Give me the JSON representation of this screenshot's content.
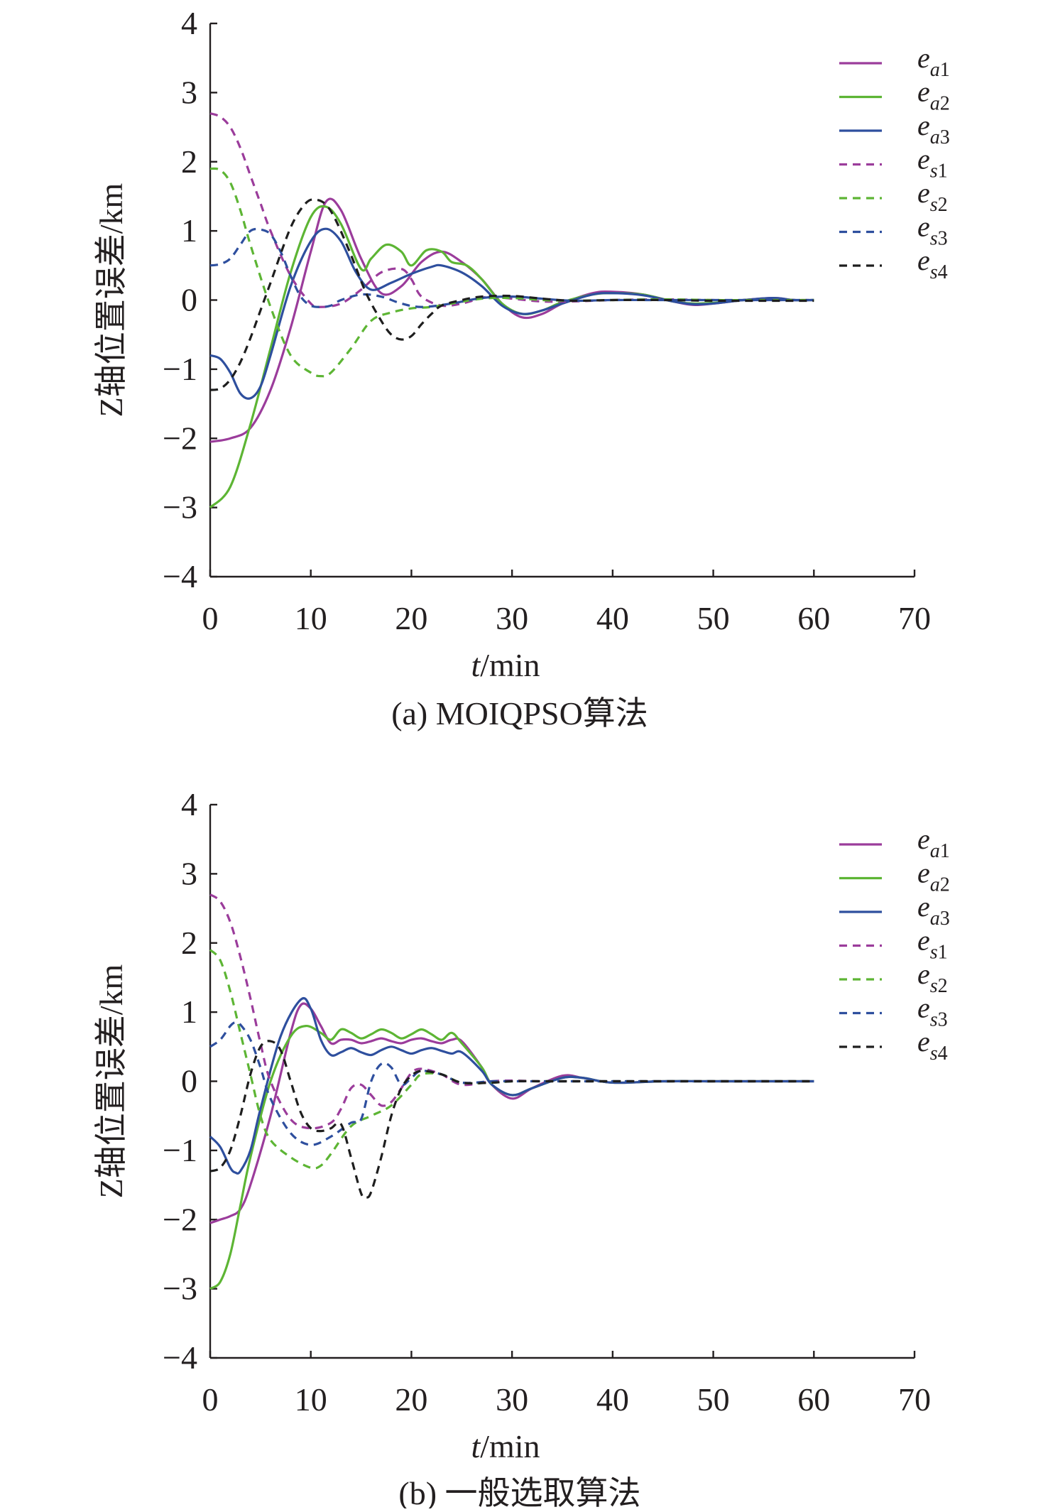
{
  "chart_data": [
    {
      "type": "line",
      "caption": "(a) MOIQPSO算法",
      "xlabel_italic": "t",
      "xlabel_unit": "/min",
      "ylabel": "Z轴位置误差/km",
      "xlim": [
        0,
        70
      ],
      "ylim": [
        -4,
        4
      ],
      "xticks": [
        "0",
        "10",
        "20",
        "30",
        "40",
        "50",
        "60",
        "70"
      ],
      "yticks": [
        "4",
        "3",
        "2",
        "1",
        "0",
        "−1",
        "−2",
        "−3",
        "−4"
      ],
      "grid": false,
      "legend_position": "top-right",
      "series": [
        {
          "name": "ea1",
          "label_main": "e",
          "label_sub": "a1",
          "color": "#9b3c9b",
          "style": "solid",
          "x": [
            0,
            2,
            4,
            6,
            8,
            10,
            11.5,
            13,
            15,
            17,
            19,
            21,
            23,
            25,
            27,
            29,
            31,
            33,
            35,
            38,
            40,
            43,
            46,
            48,
            50,
            53,
            56,
            58,
            60
          ],
          "y": [
            -2.05,
            -2.0,
            -1.85,
            -1.3,
            -0.4,
            0.7,
            1.42,
            1.3,
            0.6,
            0.1,
            0.2,
            0.55,
            0.7,
            0.55,
            0.3,
            -0.05,
            -0.25,
            -0.2,
            -0.05,
            0.1,
            0.12,
            0.08,
            -0.02,
            -0.07,
            -0.05,
            0.0,
            0.03,
            0.0,
            0.0
          ]
        },
        {
          "name": "ea2",
          "label_main": "e",
          "label_sub": "a2",
          "color": "#5db534",
          "style": "solid",
          "x": [
            0,
            2,
            4,
            6,
            8,
            10,
            11.5,
            13,
            15,
            16,
            17.5,
            19,
            20,
            21.5,
            23,
            24,
            25.5,
            27,
            29,
            31,
            33,
            35,
            38,
            40,
            43,
            46,
            48,
            50,
            53,
            56,
            58,
            60
          ],
          "y": [
            -3.0,
            -2.7,
            -1.8,
            -0.7,
            0.4,
            1.2,
            1.35,
            1.1,
            0.45,
            0.6,
            0.8,
            0.7,
            0.5,
            0.72,
            0.7,
            0.55,
            0.5,
            0.3,
            -0.05,
            -0.2,
            -0.15,
            -0.03,
            0.08,
            0.1,
            0.08,
            -0.02,
            -0.05,
            -0.04,
            0.0,
            0.02,
            0.0,
            0.0
          ]
        },
        {
          "name": "ea3",
          "label_main": "e",
          "label_sub": "a3",
          "color": "#2e4f9e",
          "style": "solid",
          "x": [
            0,
            1,
            2,
            3,
            4,
            5,
            6,
            8,
            10,
            11.5,
            13,
            14.5,
            16,
            18,
            20,
            22,
            23,
            25,
            27,
            29,
            31,
            33,
            35,
            38,
            40,
            43,
            46,
            48,
            50,
            53,
            56,
            58,
            60
          ],
          "y": [
            -0.8,
            -0.85,
            -1.05,
            -1.35,
            -1.42,
            -1.25,
            -0.8,
            0.2,
            0.85,
            1.03,
            0.85,
            0.4,
            0.15,
            0.25,
            0.38,
            0.48,
            0.5,
            0.4,
            0.2,
            -0.08,
            -0.2,
            -0.15,
            -0.05,
            0.08,
            0.1,
            0.07,
            -0.02,
            -0.06,
            -0.05,
            0.0,
            0.03,
            0.0,
            0.0
          ]
        },
        {
          "name": "es1",
          "label_main": "e",
          "label_sub": "s1",
          "color": "#9b3c9b",
          "style": "dashed",
          "x": [
            0,
            1,
            2,
            3,
            4,
            5,
            6,
            8,
            10,
            11,
            13,
            15,
            17,
            19,
            20,
            21,
            23,
            25,
            27,
            28,
            30,
            33,
            36,
            40,
            45,
            50,
            55,
            60
          ],
          "y": [
            2.7,
            2.65,
            2.5,
            2.2,
            1.8,
            1.4,
            1.0,
            0.35,
            -0.05,
            -0.1,
            -0.05,
            0.15,
            0.4,
            0.45,
            0.3,
            0.05,
            -0.08,
            -0.05,
            0.03,
            0.05,
            0.02,
            -0.02,
            -0.02,
            0.0,
            0.01,
            0.0,
            0.0,
            0.0
          ]
        },
        {
          "name": "es2",
          "label_main": "e",
          "label_sub": "s2",
          "color": "#5db534",
          "style": "dashed",
          "x": [
            0,
            1,
            2,
            3,
            4,
            6,
            8,
            10,
            11,
            12,
            14,
            16,
            18,
            20,
            22,
            24,
            27,
            30,
            33,
            36,
            40,
            45,
            50,
            55,
            60
          ],
          "y": [
            1.9,
            1.88,
            1.7,
            1.3,
            0.8,
            -0.1,
            -0.8,
            -1.05,
            -1.1,
            -1.05,
            -0.7,
            -0.3,
            -0.18,
            -0.12,
            -0.1,
            -0.05,
            0.02,
            0.03,
            0.0,
            -0.01,
            0.0,
            0.01,
            0.0,
            0.0,
            0.0
          ]
        },
        {
          "name": "es3",
          "label_main": "e",
          "label_sub": "s3",
          "color": "#2e4f9e",
          "style": "dashed",
          "x": [
            0,
            1,
            2,
            3,
            4,
            5,
            6,
            7,
            8,
            9,
            10,
            11,
            12,
            13,
            15,
            17,
            19,
            21,
            24,
            27,
            30,
            33,
            36,
            40,
            45,
            50,
            55,
            60
          ],
          "y": [
            0.5,
            0.52,
            0.6,
            0.8,
            1.0,
            1.02,
            0.95,
            0.7,
            0.35,
            0.05,
            -0.08,
            -0.1,
            -0.08,
            0.0,
            0.08,
            0.05,
            -0.05,
            -0.1,
            -0.05,
            0.03,
            0.05,
            0.02,
            -0.01,
            0.0,
            0.0,
            0.0,
            0.0,
            0.0
          ]
        },
        {
          "name": "es4",
          "label_main": "e",
          "label_sub": "s4",
          "color": "#1e1e1e",
          "style": "dashed",
          "x": [
            0,
            1,
            2,
            3,
            4,
            5,
            6,
            8,
            9.5,
            10.5,
            11.5,
            12.5,
            14,
            15.5,
            17,
            18,
            19,
            20,
            21,
            22,
            23,
            25,
            27,
            30,
            33,
            36,
            40,
            45,
            50,
            55,
            60
          ],
          "y": [
            -1.3,
            -1.28,
            -1.15,
            -0.9,
            -0.55,
            -0.15,
            0.25,
            1.05,
            1.4,
            1.45,
            1.38,
            1.15,
            0.65,
            0.1,
            -0.3,
            -0.5,
            -0.57,
            -0.52,
            -0.35,
            -0.2,
            -0.08,
            0.0,
            0.05,
            0.06,
            0.02,
            -0.01,
            0.0,
            0.0,
            -0.01,
            -0.01,
            -0.01
          ]
        }
      ]
    },
    {
      "type": "line",
      "caption": "(b) 一般选取算法",
      "xlabel_italic": "t",
      "xlabel_unit": "/min",
      "ylabel": "Z轴位置误差/km",
      "xlim": [
        0,
        70
      ],
      "ylim": [
        -4,
        4
      ],
      "xticks": [
        "0",
        "10",
        "20",
        "30",
        "40",
        "50",
        "60",
        "70"
      ],
      "yticks": [
        "4",
        "3",
        "2",
        "1",
        "0",
        "−1",
        "−2",
        "−3",
        "−4"
      ],
      "grid": false,
      "legend_position": "top-right",
      "series": [
        {
          "name": "ea1",
          "label_main": "e",
          "label_sub": "a1",
          "color": "#9b3c9b",
          "style": "solid",
          "x": [
            0,
            1,
            2,
            3,
            4,
            6,
            8,
            9,
            10,
            11,
            12,
            13,
            14,
            15,
            16,
            17,
            18,
            19,
            20,
            21,
            22,
            23,
            24,
            25,
            27,
            28,
            30,
            32,
            35,
            37,
            40,
            45,
            50,
            55,
            60
          ],
          "y": [
            -2.05,
            -2.0,
            -1.95,
            -1.85,
            -1.5,
            -0.5,
            0.7,
            1.1,
            1.05,
            0.8,
            0.55,
            0.6,
            0.6,
            0.55,
            0.58,
            0.62,
            0.58,
            0.55,
            0.6,
            0.62,
            0.58,
            0.55,
            0.6,
            0.58,
            0.2,
            -0.05,
            -0.25,
            -0.1,
            0.08,
            0.05,
            -0.02,
            0.0,
            0.0,
            0.0,
            0.0
          ]
        },
        {
          "name": "ea2",
          "label_main": "e",
          "label_sub": "a2",
          "color": "#5db534",
          "style": "solid",
          "x": [
            0,
            1,
            2,
            3,
            4,
            6,
            8,
            9.5,
            11,
            12,
            13,
            14,
            15,
            16,
            17,
            18,
            19,
            20,
            21,
            22,
            23,
            24,
            25,
            27,
            28,
            30,
            32,
            35,
            37,
            40,
            45,
            50,
            55,
            60
          ],
          "y": [
            -3.0,
            -2.9,
            -2.5,
            -1.8,
            -1.1,
            0.0,
            0.65,
            0.8,
            0.7,
            0.6,
            0.75,
            0.7,
            0.62,
            0.68,
            0.75,
            0.7,
            0.62,
            0.68,
            0.75,
            0.68,
            0.6,
            0.7,
            0.55,
            0.2,
            -0.05,
            -0.2,
            -0.1,
            0.05,
            0.05,
            -0.02,
            0.0,
            0.0,
            0.0,
            0.0
          ]
        },
        {
          "name": "ea3",
          "label_main": "e",
          "label_sub": "a3",
          "color": "#2e4f9e",
          "style": "solid",
          "x": [
            0,
            1,
            2,
            2.5,
            3,
            4,
            5,
            7,
            9,
            10,
            11,
            12,
            13,
            14,
            15,
            16,
            17,
            18,
            19,
            20,
            21,
            22,
            23,
            24,
            25,
            27,
            28,
            30,
            32,
            35,
            37,
            40,
            45,
            50,
            55,
            60
          ],
          "y": [
            -0.8,
            -0.95,
            -1.25,
            -1.32,
            -1.3,
            -1.0,
            -0.4,
            0.65,
            1.18,
            1.05,
            0.6,
            0.38,
            0.42,
            0.48,
            0.42,
            0.38,
            0.45,
            0.5,
            0.45,
            0.4,
            0.45,
            0.48,
            0.44,
            0.4,
            0.42,
            0.15,
            -0.05,
            -0.2,
            -0.1,
            0.05,
            0.05,
            -0.02,
            0.0,
            0.0,
            0.0,
            0.0
          ]
        },
        {
          "name": "es1",
          "label_main": "e",
          "label_sub": "s1",
          "color": "#9b3c9b",
          "style": "dashed",
          "x": [
            0,
            1,
            2,
            3,
            4,
            5,
            6,
            8,
            10,
            12,
            13,
            14,
            15,
            16,
            17,
            18,
            19,
            20,
            21,
            23,
            25,
            28,
            30,
            33,
            36,
            40,
            45,
            50,
            55,
            60
          ],
          "y": [
            2.7,
            2.6,
            2.3,
            1.8,
            1.2,
            0.55,
            0.0,
            -0.55,
            -0.68,
            -0.6,
            -0.4,
            -0.1,
            -0.05,
            -0.2,
            -0.35,
            -0.3,
            -0.1,
            0.12,
            0.18,
            0.1,
            -0.05,
            0.0,
            0.01,
            0.0,
            0.0,
            0.0,
            0.0,
            0.0,
            0.0,
            0.0
          ]
        },
        {
          "name": "es2",
          "label_main": "e",
          "label_sub": "s2",
          "color": "#5db534",
          "style": "dashed",
          "x": [
            0,
            1,
            2,
            3,
            4,
            5,
            6,
            8,
            10,
            11,
            12,
            14,
            16,
            18,
            20,
            21,
            23,
            25,
            28,
            30,
            33,
            36,
            40,
            45,
            50,
            55,
            60
          ],
          "y": [
            1.9,
            1.75,
            1.3,
            0.7,
            0.1,
            -0.5,
            -0.85,
            -1.1,
            -1.25,
            -1.22,
            -1.05,
            -0.65,
            -0.5,
            -0.35,
            -0.05,
            0.1,
            0.1,
            -0.02,
            -0.02,
            0.0,
            0.0,
            0.0,
            0.0,
            0.0,
            0.0,
            0.0,
            0.0
          ]
        },
        {
          "name": "es3",
          "label_main": "e",
          "label_sub": "s3",
          "color": "#2e4f9e",
          "style": "dashed",
          "x": [
            0,
            1,
            2,
            2.5,
            3,
            4,
            5,
            6,
            8,
            10,
            12,
            14,
            15,
            16,
            17,
            18,
            19,
            20,
            21,
            23,
            25,
            28,
            30,
            33,
            36,
            40,
            45,
            50,
            55,
            60
          ],
          "y": [
            0.5,
            0.6,
            0.8,
            0.85,
            0.82,
            0.6,
            0.2,
            -0.25,
            -0.75,
            -0.92,
            -0.8,
            -0.6,
            -0.55,
            0.0,
            0.25,
            0.2,
            -0.05,
            0.05,
            0.15,
            0.1,
            -0.02,
            0.0,
            0.0,
            0.0,
            0.0,
            0.0,
            0.0,
            0.0,
            0.0,
            0.0
          ]
        },
        {
          "name": "es4",
          "label_main": "e",
          "label_sub": "s4",
          "color": "#1e1e1e",
          "style": "dashed",
          "x": [
            0,
            1,
            2,
            3,
            4,
            5,
            6,
            7,
            8,
            9,
            10,
            11,
            12,
            13,
            14,
            15,
            15.5,
            16,
            17,
            18,
            19,
            20,
            21,
            23,
            25,
            28,
            30,
            33,
            36,
            40,
            45,
            50,
            55,
            60
          ],
          "y": [
            -1.3,
            -1.25,
            -1.0,
            -0.5,
            0.1,
            0.5,
            0.58,
            0.45,
            0.0,
            -0.45,
            -0.68,
            -0.72,
            -0.68,
            -0.62,
            -1.1,
            -1.62,
            -1.68,
            -1.6,
            -1.1,
            -0.5,
            -0.1,
            0.08,
            0.15,
            0.1,
            -0.02,
            -0.02,
            0.0,
            0.0,
            0.0,
            0.0,
            0.0,
            0.0,
            0.0,
            0.0
          ]
        }
      ]
    }
  ]
}
